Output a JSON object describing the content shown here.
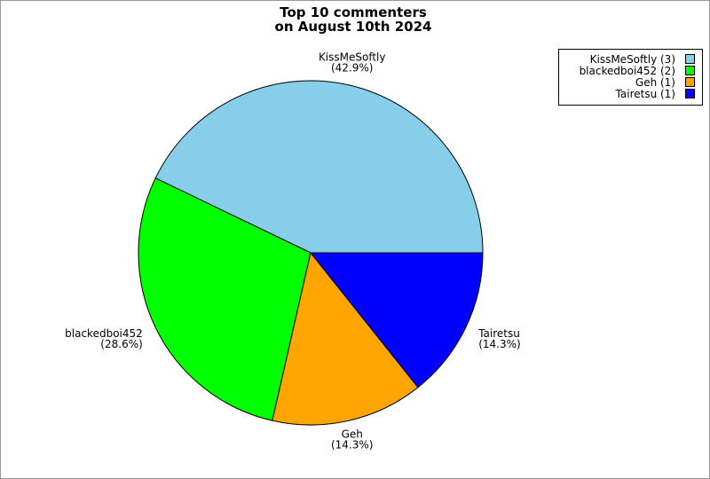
{
  "chart_data": {
    "type": "pie",
    "title": [
      "Top 10 commenters",
      "on August 10th 2024"
    ],
    "categories": [
      "KissMeSoftly",
      "blackedboi452",
      "Geh",
      "Tairetsu"
    ],
    "values": [
      42.9,
      28.6,
      14.3,
      14.3
    ],
    "value_labels": [
      "(42.9%)",
      "(28.6%)",
      "(14.3%)",
      "(14.3%)"
    ],
    "legend_labels": [
      "KissMeSoftly (3)",
      "blackedboi452 (2)",
      "Geh (1)",
      "Tairetsu (1)"
    ],
    "colors": [
      "#87ceeb",
      "#00ff00",
      "#ffa500",
      "#0000ff"
    ],
    "legend": "upper right"
  }
}
